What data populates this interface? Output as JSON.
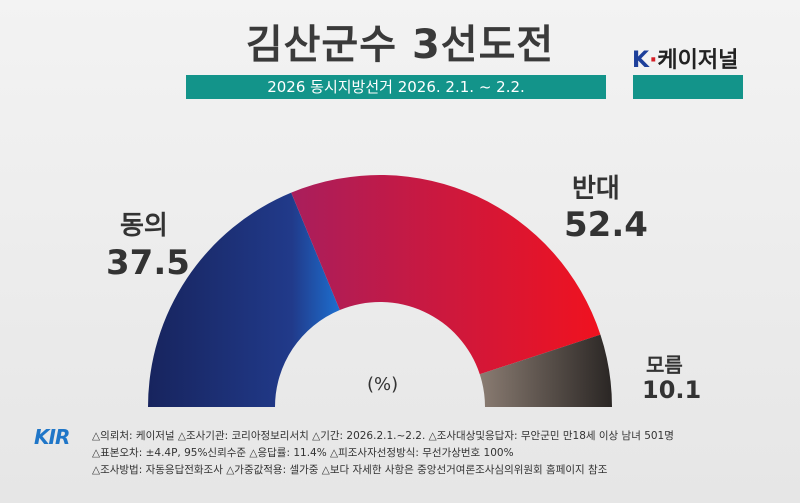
{
  "title": "김산군수 3선도전",
  "subtitle": "2026 동시지방선거 2026. 2.1. ~ 2.2.",
  "brand": {
    "k": "K",
    "dot": "·",
    "name": "케이저널"
  },
  "chart_data": {
    "type": "pie",
    "shape": "half-donut",
    "unit_label": "(%)",
    "categories": [
      "동의",
      "반대",
      "모름"
    ],
    "values": [
      37.5,
      52.4,
      10.1
    ],
    "value_labels": [
      "37.5",
      "52.4",
      "10.1"
    ],
    "colors": [
      "#1b2c6b",
      "#d3183a",
      "#4a4441"
    ]
  },
  "logo_text": "KIR",
  "notes": [
    "△의뢰처: 케이저널   △조사기관: 코리아정보리서치   △기간: 2026.2.1.~2.2.   △조사대상및응답자: 무안군민 만18세 이상 남녀 501명",
    "△표본오차: ±4.4P, 95%신뢰수준 △응답률: 11.4%   △피조사자선정방식: 무선가상번호 100%",
    "△조사방법: 자동응답전화조사   △가중값적용: 셀가중   △보다 자세한 사항은 중앙선거여론조사심의위원회 홈페이지 참조"
  ]
}
